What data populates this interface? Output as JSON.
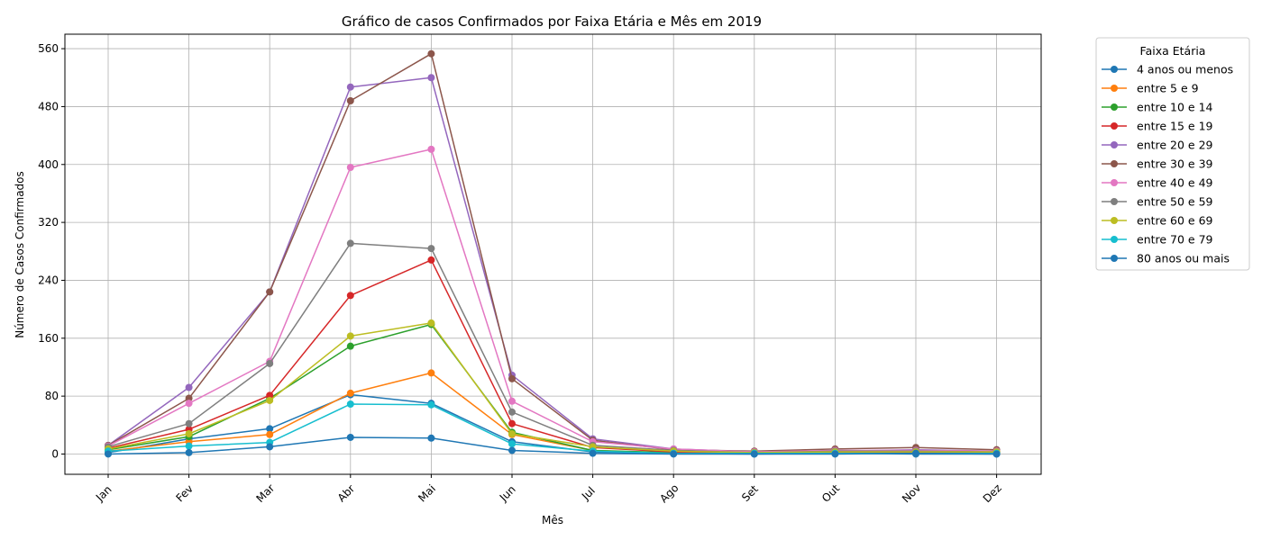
{
  "chart_data": {
    "type": "line",
    "title": "Gráfico de casos Confirmados por Faixa Etária e Mês em 2019",
    "xlabel": "Mês",
    "ylabel": "Número de Casos Confirmados",
    "categories": [
      "Jan",
      "Fev",
      "Mar",
      "Abr",
      "Mai",
      "Jun",
      "Jul",
      "Ago",
      "Set",
      "Out",
      "Nov",
      "Dez"
    ],
    "yticks": [
      0,
      80,
      160,
      240,
      320,
      400,
      480,
      560
    ],
    "ylim": [
      -28,
      580
    ],
    "grid": true,
    "legend_title": "Faixa Etária",
    "legend_position": "outside-right",
    "series": [
      {
        "name": "4 anos ou menos",
        "color": "#1f77b4",
        "values": [
          2,
          21,
          35,
          82,
          70,
          17,
          3,
          1,
          0,
          1,
          0,
          0
        ]
      },
      {
        "name": "entre 5 e 9",
        "color": "#ff7f0e",
        "values": [
          4,
          17,
          27,
          84,
          112,
          27,
          5,
          1,
          1,
          1,
          1,
          1
        ]
      },
      {
        "name": "entre 10 e 14",
        "color": "#2ca02c",
        "values": [
          6,
          24,
          77,
          149,
          179,
          30,
          5,
          2,
          1,
          2,
          2,
          2
        ]
      },
      {
        "name": "entre 15 e 19",
        "color": "#d62728",
        "values": [
          8,
          34,
          81,
          219,
          268,
          42,
          9,
          3,
          1,
          2,
          3,
          3
        ]
      },
      {
        "name": "entre 20 e 29",
        "color": "#9467bd",
        "values": [
          12,
          92,
          224,
          507,
          520,
          109,
          21,
          7,
          3,
          4,
          6,
          4
        ]
      },
      {
        "name": "entre 30 e 39",
        "color": "#8c564b",
        "values": [
          12,
          77,
          224,
          488,
          553,
          104,
          19,
          6,
          4,
          7,
          9,
          6
        ]
      },
      {
        "name": "entre 40 e 49",
        "color": "#e377c2",
        "values": [
          11,
          70,
          128,
          396,
          421,
          73,
          17,
          7,
          3,
          5,
          5,
          4
        ]
      },
      {
        "name": "entre 50 e 59",
        "color": "#7f7f7f",
        "values": [
          10,
          42,
          125,
          291,
          284,
          58,
          12,
          5,
          2,
          4,
          4,
          3
        ]
      },
      {
        "name": "entre 60 e 69",
        "color": "#bcbd22",
        "values": [
          7,
          28,
          74,
          163,
          181,
          28,
          10,
          4,
          2,
          3,
          3,
          3
        ]
      },
      {
        "name": "entre 70 e 79",
        "color": "#17becf",
        "values": [
          4,
          11,
          16,
          69,
          68,
          14,
          4,
          1,
          1,
          1,
          1,
          1
        ]
      },
      {
        "name": "80 anos ou mais",
        "color": "#1f77b4",
        "values": [
          0,
          2,
          10,
          23,
          22,
          5,
          1,
          0,
          0,
          0,
          1,
          0
        ]
      }
    ]
  }
}
